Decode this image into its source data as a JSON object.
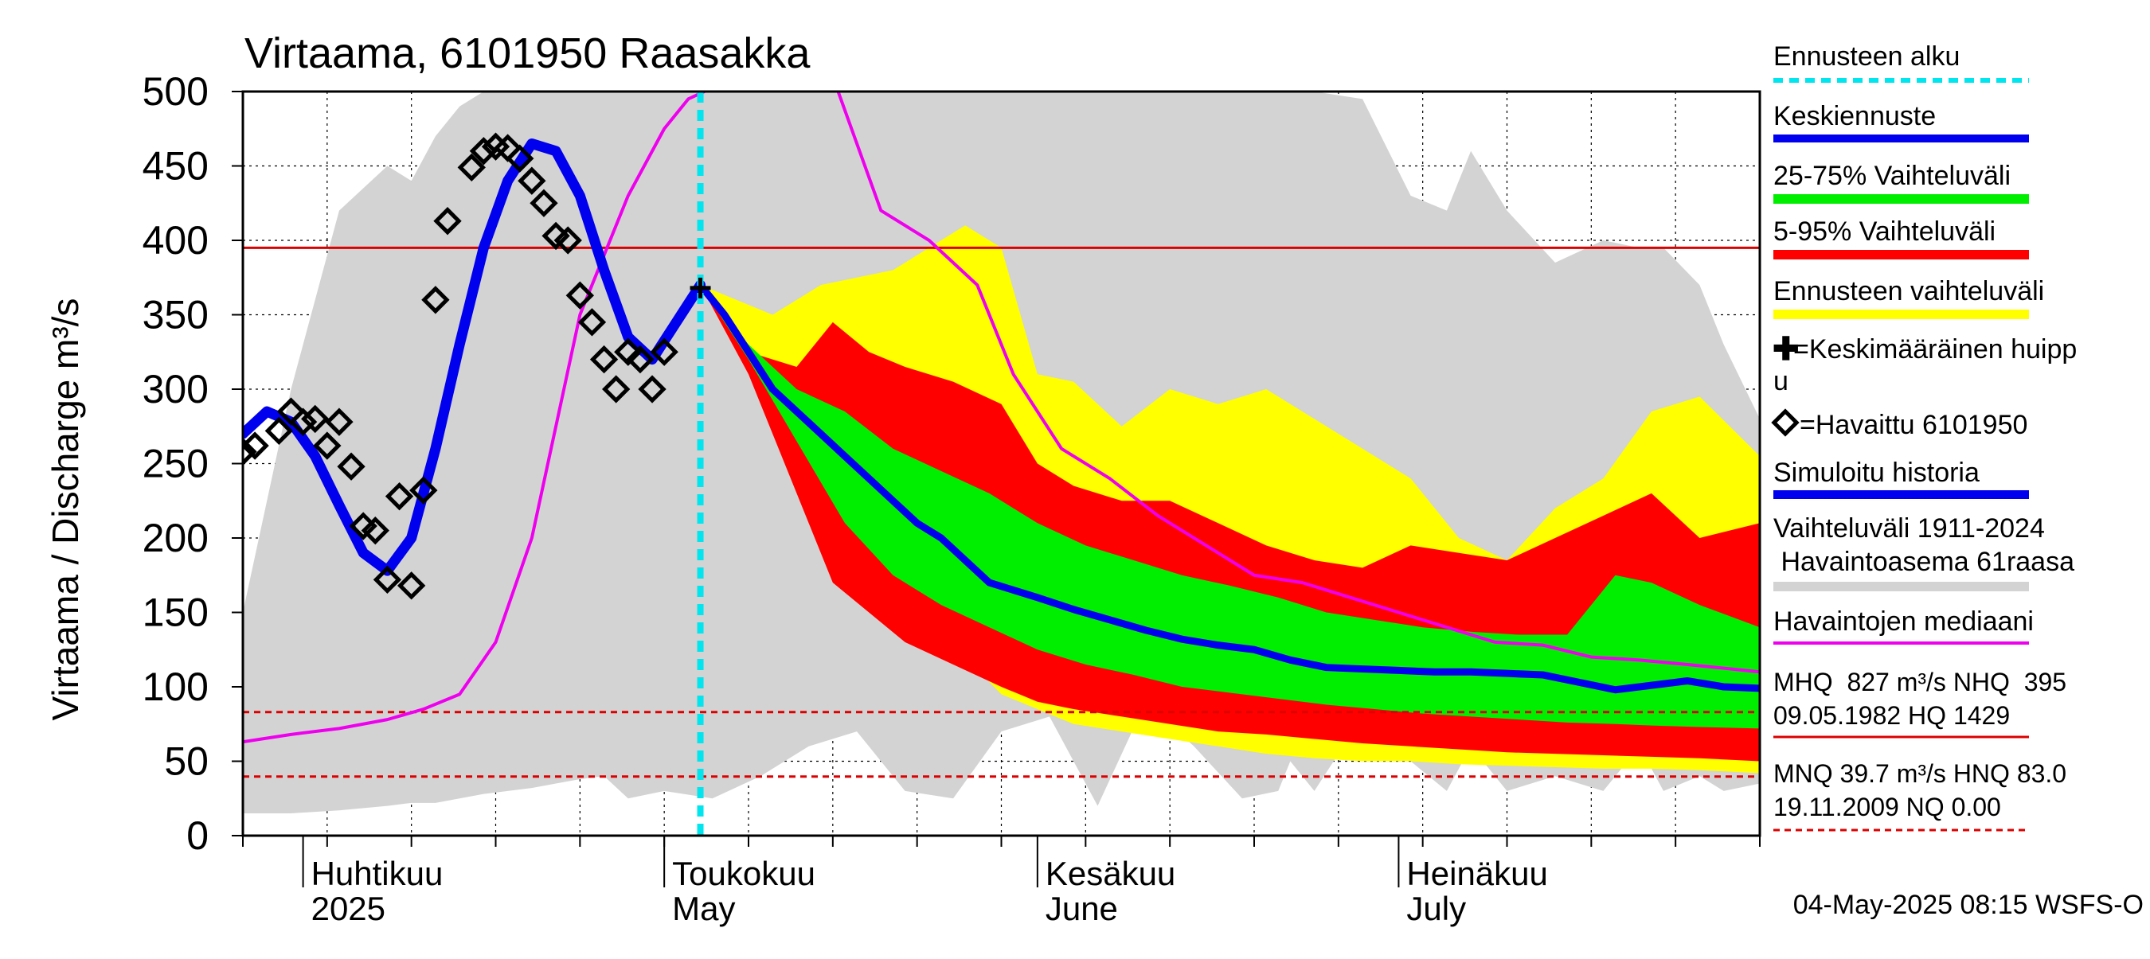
{
  "chart_data": {
    "type": "line",
    "title": "Virtaama, 6101950 Raasakka",
    "ylabel": "Virtaama / Discharge   m³/s",
    "ylim": [
      0,
      500
    ],
    "yticks": [
      "0",
      "50",
      "100",
      "150",
      "200",
      "250",
      "300",
      "350",
      "400",
      "450",
      "500"
    ],
    "xlim": [
      "2025-03-27",
      "2025-07-31"
    ],
    "month_labels": [
      {
        "date": "2025-04-01",
        "fi": "Huhtikuu",
        "en": "2025"
      },
      {
        "date": "2025-05-01",
        "fi": "Toukokuu",
        "en": "May"
      },
      {
        "date": "2025-06-01",
        "fi": "Kesäkuu",
        "en": "June"
      },
      {
        "date": "2025-07-01",
        "fi": "Heinäkuu",
        "en": "July"
      }
    ],
    "forecast_start": "2025-05-04",
    "reference_lines": [
      {
        "name": "NHQ",
        "value": 395,
        "color": "#dd0000",
        "style": "solid"
      },
      {
        "name": "HNQ",
        "value": 83.0,
        "color": "#dd0000",
        "style": "dashed"
      },
      {
        "name": "MNQ",
        "value": 39.7,
        "color": "#dd0000",
        "style": "dashed"
      }
    ],
    "colors": {
      "history_range": "#d3d3d3",
      "forecast_range": "#ffff00",
      "p5_95": "#ff0000",
      "p25_75": "#00ee00",
      "mean_forecast": "#0000ee",
      "simulated": "#0000ee",
      "median": "#ee00ee",
      "observed": "#000000",
      "forecast_start": "#00e5ee"
    },
    "series": {
      "history_range": {
        "x": [
          "2025-03-27",
          "2025-03-31",
          "2025-04-04",
          "2025-04-08",
          "2025-04-10",
          "2025-04-12",
          "2025-04-14",
          "2025-04-16",
          "2025-04-18",
          "2025-04-20",
          "2025-04-22",
          "2025-04-24",
          "2025-04-26",
          "2025-04-28",
          "2025-05-01",
          "2025-05-05",
          "2025-05-09",
          "2025-05-13",
          "2025-05-17",
          "2025-05-21",
          "2025-05-25",
          "2025-05-29",
          "2025-06-02",
          "2025-06-06",
          "2025-06-10",
          "2025-06-14",
          "2025-06-18",
          "2025-06-21",
          "2025-06-22",
          "2025-06-24",
          "2025-06-28",
          "2025-07-02",
          "2025-07-05",
          "2025-07-07",
          "2025-07-10",
          "2025-07-14",
          "2025-07-18",
          "2025-07-21",
          "2025-07-23",
          "2025-07-26",
          "2025-07-28",
          "2025-07-31"
        ],
        "upper": [
          150,
          300,
          420,
          450,
          440,
          470,
          490,
          500,
          500,
          500,
          500,
          500,
          500,
          500,
          500,
          500,
          500,
          500,
          500,
          500,
          500,
          500,
          500,
          500,
          500,
          500,
          500,
          500,
          500,
          500,
          495,
          430,
          420,
          460,
          420,
          385,
          400,
          395,
          395,
          370,
          330,
          280
        ],
        "lower": [
          15,
          15,
          17,
          20,
          22,
          22,
          25,
          28,
          30,
          32,
          35,
          38,
          40,
          25,
          30,
          25,
          40,
          60,
          70,
          30,
          25,
          70,
          80,
          20,
          90,
          60,
          25,
          30,
          50,
          30,
          80,
          50,
          30,
          60,
          30,
          40,
          30,
          60,
          30,
          40,
          30,
          35
        ]
      },
      "forecast_range": {
        "x": [
          "2025-05-04",
          "2025-05-10",
          "2025-05-14",
          "2025-05-20",
          "2025-05-26",
          "2025-05-29",
          "2025-06-01",
          "2025-06-04",
          "2025-06-08",
          "2025-06-12",
          "2025-06-16",
          "2025-06-20",
          "2025-06-24",
          "2025-06-28",
          "2025-07-02",
          "2025-07-06",
          "2025-07-10",
          "2025-07-14",
          "2025-07-18",
          "2025-07-22",
          "2025-07-26",
          "2025-07-31"
        ],
        "upper": [
          370,
          350,
          370,
          380,
          410,
          395,
          310,
          305,
          275,
          300,
          290,
          300,
          280,
          260,
          240,
          200,
          185,
          220,
          240,
          285,
          295,
          255
        ],
        "lower": [
          370,
          300,
          220,
          160,
          120,
          95,
          85,
          75,
          70,
          65,
          60,
          55,
          52,
          50,
          50,
          48,
          47,
          46,
          45,
          45,
          44,
          42
        ]
      },
      "p5_95": {
        "x": [
          "2025-05-04",
          "2025-05-08",
          "2025-05-12",
          "2025-05-15",
          "2025-05-18",
          "2025-05-21",
          "2025-05-25",
          "2025-05-29",
          "2025-06-01",
          "2025-06-04",
          "2025-06-08",
          "2025-06-12",
          "2025-06-16",
          "2025-06-20",
          "2025-06-24",
          "2025-06-28",
          "2025-07-02",
          "2025-07-06",
          "2025-07-10",
          "2025-07-14",
          "2025-07-18",
          "2025-07-22",
          "2025-07-26",
          "2025-07-31"
        ],
        "upper": [
          370,
          325,
          315,
          345,
          325,
          315,
          305,
          290,
          250,
          235,
          225,
          225,
          210,
          195,
          185,
          180,
          195,
          190,
          185,
          200,
          215,
          230,
          200,
          210
        ],
        "lower": [
          370,
          310,
          230,
          170,
          150,
          130,
          115,
          100,
          90,
          85,
          80,
          75,
          70,
          68,
          65,
          62,
          60,
          58,
          56,
          55,
          54,
          53,
          52,
          50
        ]
      },
      "p25_75": {
        "x": [
          "2025-05-04",
          "2025-05-08",
          "2025-05-12",
          "2025-05-16",
          "2025-05-20",
          "2025-05-24",
          "2025-05-28",
          "2025-06-01",
          "2025-06-05",
          "2025-06-09",
          "2025-06-13",
          "2025-06-17",
          "2025-06-21",
          "2025-06-25",
          "2025-06-29",
          "2025-07-03",
          "2025-07-07",
          "2025-07-11",
          "2025-07-15",
          "2025-07-19",
          "2025-07-22",
          "2025-07-26",
          "2025-07-31"
        ],
        "upper": [
          370,
          330,
          300,
          285,
          260,
          245,
          230,
          210,
          195,
          185,
          175,
          168,
          160,
          150,
          145,
          140,
          137,
          135,
          135,
          175,
          170,
          155,
          140
        ],
        "lower": [
          370,
          320,
          265,
          210,
          175,
          155,
          140,
          125,
          115,
          108,
          100,
          96,
          92,
          88,
          85,
          82,
          80,
          78,
          76,
          75,
          74,
          73,
          72
        ]
      },
      "mean_forecast": {
        "x": [
          "2025-05-04",
          "2025-05-06",
          "2025-05-08",
          "2025-05-10",
          "2025-05-12",
          "2025-05-14",
          "2025-05-16",
          "2025-05-18",
          "2025-05-20",
          "2025-05-22",
          "2025-05-24",
          "2025-05-26",
          "2025-05-28",
          "2025-05-30",
          "2025-06-01",
          "2025-06-04",
          "2025-06-07",
          "2025-06-10",
          "2025-06-13",
          "2025-06-16",
          "2025-06-19",
          "2025-06-22",
          "2025-06-25",
          "2025-06-28",
          "2025-07-01",
          "2025-07-04",
          "2025-07-07",
          "2025-07-10",
          "2025-07-13",
          "2025-07-16",
          "2025-07-19",
          "2025-07-22",
          "2025-07-25",
          "2025-07-28",
          "2025-07-31"
        ],
        "values": [
          370,
          350,
          325,
          300,
          285,
          270,
          255,
          240,
          225,
          210,
          200,
          185,
          170,
          165,
          160,
          152,
          145,
          138,
          132,
          128,
          125,
          118,
          113,
          112,
          111,
          110,
          110,
          109,
          108,
          103,
          98,
          101,
          104,
          100,
          99
        ]
      },
      "simulated": {
        "x": [
          "2025-03-27",
          "2025-03-29",
          "2025-03-31",
          "2025-04-02",
          "2025-04-04",
          "2025-04-06",
          "2025-04-08",
          "2025-04-10",
          "2025-04-12",
          "2025-04-14",
          "2025-04-16",
          "2025-04-18",
          "2025-04-20",
          "2025-04-22",
          "2025-04-24",
          "2025-04-26",
          "2025-04-28",
          "2025-04-30",
          "2025-05-02",
          "2025-05-04"
        ],
        "values": [
          270,
          285,
          278,
          255,
          222,
          190,
          178,
          200,
          260,
          330,
          395,
          440,
          465,
          460,
          430,
          380,
          335,
          320,
          345,
          370
        ]
      },
      "median": {
        "x": [
          "2025-03-27",
          "2025-03-31",
          "2025-04-04",
          "2025-04-08",
          "2025-04-11",
          "2025-04-14",
          "2025-04-17",
          "2025-04-20",
          "2025-04-24",
          "2025-04-28",
          "2025-05-01",
          "2025-05-03",
          "2025-05-07",
          "2025-05-11",
          "2025-05-15",
          "2025-05-19",
          "2025-05-23",
          "2025-05-27",
          "2025-05-30",
          "2025-06-03",
          "2025-06-07",
          "2025-06-11",
          "2025-06-15",
          "2025-06-19",
          "2025-06-23",
          "2025-06-27",
          "2025-07-01",
          "2025-07-05",
          "2025-07-09",
          "2025-07-13",
          "2025-07-17",
          "2025-07-21",
          "2025-07-25",
          "2025-07-31"
        ],
        "values": [
          63,
          68,
          72,
          78,
          85,
          95,
          130,
          200,
          350,
          430,
          475,
          495,
          510,
          530,
          510,
          420,
          400,
          370,
          310,
          260,
          240,
          215,
          195,
          175,
          170,
          160,
          150,
          140,
          130,
          128,
          120,
          118,
          115,
          110
        ]
      },
      "observed": {
        "x": [
          "2025-03-27",
          "2025-03-28",
          "2025-03-30",
          "2025-03-31",
          "2025-04-01",
          "2025-04-02",
          "2025-04-03",
          "2025-04-04",
          "2025-04-05",
          "2025-04-06",
          "2025-04-07",
          "2025-04-08",
          "2025-04-09",
          "2025-04-10",
          "2025-04-11",
          "2025-04-12",
          "2025-04-13",
          "2025-04-15",
          "2025-04-16",
          "2025-04-17",
          "2025-04-18",
          "2025-04-19",
          "2025-04-20",
          "2025-04-21",
          "2025-04-22",
          "2025-04-23",
          "2025-04-24",
          "2025-04-25",
          "2025-04-26",
          "2025-04-27",
          "2025-04-28",
          "2025-04-29",
          "2025-04-30",
          "2025-05-01"
        ],
        "values": [
          258,
          262,
          272,
          285,
          278,
          280,
          262,
          278,
          248,
          208,
          205,
          172,
          228,
          168,
          232,
          360,
          413,
          449,
          460,
          463,
          462,
          455,
          440,
          425,
          403,
          400,
          363,
          345,
          320,
          300,
          325,
          320,
          300,
          325
        ]
      },
      "peak": {
        "x": "2025-05-04",
        "value": 368
      }
    }
  },
  "legend": {
    "forecast_start": "Ennusteen alku",
    "mean_forecast": "Keskiennuste",
    "p25_75": "25-75% Vaihteluväli",
    "p5_95": "5-95% Vaihteluväli",
    "forecast_range": "Ennusteen vaihteluväli",
    "peak_line1": "=Keskimääräinen huipp",
    "peak_line2": "u",
    "observed": "=Havaittu 6101950",
    "simulated": "Simuloitu historia",
    "history_line1": "Vaihteluväli 1911-2024",
    "history_line2": " Havaintoasema 61raasa",
    "median": "Havaintojen mediaani",
    "stats_line1": "MHQ  827 m³/s NHQ  395",
    "stats_line2": "09.05.1982 HQ 1429",
    "stats_line3": "MNQ 39.7 m³/s HNQ 83.0",
    "stats_line4": "19.11.2009 NQ 0.00"
  },
  "footer": "04-May-2025 08:15 WSFS-O"
}
